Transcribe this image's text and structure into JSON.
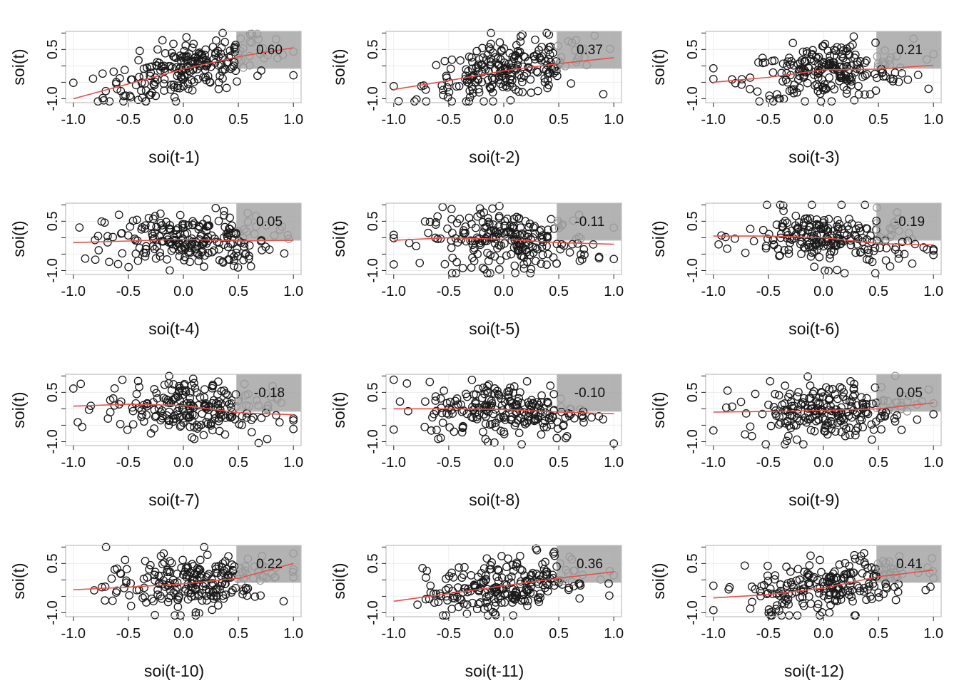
{
  "ylabel": "soi(t)",
  "colors": {
    "points": "#1a1a1a",
    "points_right": "#9a9a9a",
    "smooth": "#e8504a",
    "shade": "#a6a6a6",
    "frame": "#bdbdbd",
    "grid": "#ececec"
  },
  "chart_data": [
    {
      "type": "scatter",
      "xlabel": "soi(t-1)",
      "ylabel": "soi(t)",
      "correlation": "0.60",
      "trend": {
        "x": [
          -1.0,
          -0.5,
          0.0,
          0.5,
          1.0
        ],
        "y": [
          -1.0,
          -0.55,
          -0.1,
          0.28,
          0.55
        ]
      },
      "xlim": [
        -1.0,
        1.0
      ],
      "ylim": [
        -1.0,
        1.0
      ],
      "xticks": [
        "-1.0",
        "-0.5",
        "0.0",
        "0.5",
        "1.0"
      ],
      "yticks": [
        "-1.0",
        "0.5"
      ],
      "grid": true
    },
    {
      "type": "scatter",
      "xlabel": "soi(t-2)",
      "ylabel": "soi(t)",
      "correlation": "0.37",
      "trend": {
        "x": [
          -1.0,
          -0.5,
          0.0,
          0.5,
          1.0
        ],
        "y": [
          -0.72,
          -0.45,
          -0.15,
          0.07,
          0.25
        ]
      },
      "xlim": [
        -1.0,
        1.0
      ],
      "ylim": [
        -1.0,
        1.0
      ],
      "xticks": [
        "-1.0",
        "-0.5",
        "0.0",
        "0.5",
        "1.0"
      ],
      "yticks": [
        "-1.0",
        "0.5"
      ],
      "grid": true
    },
    {
      "type": "scatter",
      "xlabel": "soi(t-3)",
      "ylabel": "soi(t)",
      "correlation": "0.21",
      "trend": {
        "x": [
          -1.0,
          -0.5,
          0.0,
          0.5,
          1.0
        ],
        "y": [
          -0.5,
          -0.35,
          -0.12,
          -0.1,
          0.02
        ]
      },
      "xlim": [
        -1.0,
        1.0
      ],
      "ylim": [
        -1.0,
        1.0
      ],
      "xticks": [
        "-1.0",
        "-0.5",
        "0.0",
        "0.5",
        "1.0"
      ],
      "yticks": [
        "-1.0",
        "0.5"
      ],
      "grid": true
    },
    {
      "type": "scatter",
      "xlabel": "soi(t-4)",
      "ylabel": "soi(t)",
      "correlation": "0.05",
      "trend": {
        "x": [
          -1.0,
          -0.5,
          0.0,
          0.5,
          1.0
        ],
        "y": [
          -0.15,
          -0.1,
          -0.05,
          -0.1,
          -0.08
        ]
      },
      "xlim": [
        -1.0,
        1.0
      ],
      "ylim": [
        -1.0,
        1.0
      ],
      "xticks": [
        "-1.0",
        "-0.5",
        "0.0",
        "0.5",
        "1.0"
      ],
      "yticks": [
        "-1.0",
        "0.5"
      ],
      "grid": true
    },
    {
      "type": "scatter",
      "xlabel": "soi(t-5)",
      "ylabel": "soi(t)",
      "correlation": "-0.11",
      "trend": {
        "x": [
          -1.0,
          -0.5,
          0.0,
          0.5,
          1.0
        ],
        "y": [
          -0.08,
          0.0,
          -0.05,
          -0.15,
          -0.2
        ]
      },
      "xlim": [
        -1.0,
        1.0
      ],
      "ylim": [
        -1.0,
        1.0
      ],
      "xticks": [
        "-1.0",
        "-0.5",
        "0.0",
        "0.5",
        "1.0"
      ],
      "yticks": [
        "-1.0",
        "0.5"
      ],
      "grid": true
    },
    {
      "type": "scatter",
      "xlabel": "soi(t-6)",
      "ylabel": "soi(t)",
      "correlation": "-0.19",
      "trend": {
        "x": [
          -1.0,
          -0.5,
          0.0,
          0.5,
          1.0
        ],
        "y": [
          0.05,
          0.05,
          0.0,
          -0.18,
          -0.22
        ]
      },
      "xlim": [
        -1.0,
        1.0
      ],
      "ylim": [
        -1.0,
        1.0
      ],
      "xticks": [
        "-1.0",
        "-0.5",
        "0.0",
        "0.5",
        "1.0"
      ],
      "yticks": [
        "-1.0",
        "0.5"
      ],
      "grid": true
    },
    {
      "type": "scatter",
      "xlabel": "soi(t-7)",
      "ylabel": "soi(t)",
      "correlation": "-0.18",
      "trend": {
        "x": [
          -1.0,
          -0.5,
          0.0,
          0.5,
          1.0
        ],
        "y": [
          0.08,
          0.14,
          0.1,
          -0.12,
          -0.18
        ]
      },
      "xlim": [
        -1.0,
        1.0
      ],
      "ylim": [
        -1.0,
        1.0
      ],
      "xticks": [
        "-1.0",
        "-0.5",
        "0.0",
        "0.5",
        "1.0"
      ],
      "yticks": [
        "-1.0",
        "0.5"
      ],
      "grid": true
    },
    {
      "type": "scatter",
      "xlabel": "soi(t-8)",
      "ylabel": "soi(t)",
      "correlation": "-0.10",
      "trend": {
        "x": [
          -1.0,
          -0.5,
          0.0,
          0.5,
          1.0
        ],
        "y": [
          0.0,
          0.0,
          -0.02,
          -0.1,
          -0.15
        ]
      },
      "xlim": [
        -1.0,
        1.0
      ],
      "ylim": [
        -1.0,
        1.0
      ],
      "xticks": [
        "-1.0",
        "-0.5",
        "0.0",
        "0.5",
        "1.0"
      ],
      "yticks": [
        "-1.0",
        "0.5"
      ],
      "grid": true
    },
    {
      "type": "scatter",
      "xlabel": "soi(t-9)",
      "ylabel": "soi(t)",
      "correlation": "0.05",
      "trend": {
        "x": [
          -1.0,
          -0.5,
          0.0,
          0.5,
          1.0
        ],
        "y": [
          -0.1,
          -0.08,
          -0.05,
          0.0,
          0.18
        ]
      },
      "xlim": [
        -1.0,
        1.0
      ],
      "ylim": [
        -1.0,
        1.0
      ],
      "xticks": [
        "-1.0",
        "-0.5",
        "0.0",
        "0.5",
        "1.0"
      ],
      "yticks": [
        "-1.0",
        "0.5"
      ],
      "grid": true
    },
    {
      "type": "scatter",
      "xlabel": "soi(t-10)",
      "ylabel": "soi(t)",
      "correlation": "0.22",
      "trend": {
        "x": [
          -1.0,
          -0.5,
          0.0,
          0.5,
          1.0
        ],
        "y": [
          -0.3,
          -0.22,
          -0.12,
          0.05,
          0.5
        ]
      },
      "xlim": [
        -1.0,
        1.0
      ],
      "ylim": [
        -1.0,
        1.0
      ],
      "xticks": [
        "-1.0",
        "-0.5",
        "0.0",
        "0.5",
        "1.0"
      ],
      "yticks": [
        "-1.0",
        "0.5"
      ],
      "grid": true
    },
    {
      "type": "scatter",
      "xlabel": "soi(t-11)",
      "ylabel": "soi(t)",
      "correlation": "0.36",
      "trend": {
        "x": [
          -1.0,
          -0.5,
          0.0,
          0.5,
          1.0
        ],
        "y": [
          -0.65,
          -0.42,
          -0.18,
          0.05,
          0.25
        ]
      },
      "xlim": [
        -1.0,
        1.0
      ],
      "ylim": [
        -1.0,
        1.0
      ],
      "xticks": [
        "-1.0",
        "-0.5",
        "0.0",
        "0.5",
        "1.0"
      ],
      "yticks": [
        "-1.0",
        "0.5"
      ],
      "grid": true
    },
    {
      "type": "scatter",
      "xlabel": "soi(t-12)",
      "ylabel": "soi(t)",
      "correlation": "0.41",
      "trend": {
        "x": [
          -1.0,
          -0.5,
          0.0,
          0.5,
          1.0
        ],
        "y": [
          -0.55,
          -0.45,
          -0.25,
          0.1,
          0.3
        ]
      },
      "xlim": [
        -1.0,
        1.0
      ],
      "ylim": [
        -1.0,
        1.0
      ],
      "xticks": [
        "-1.0",
        "-0.5",
        "0.0",
        "0.5",
        "1.0"
      ],
      "yticks": [
        "-1.0",
        "0.5"
      ],
      "grid": true
    }
  ]
}
